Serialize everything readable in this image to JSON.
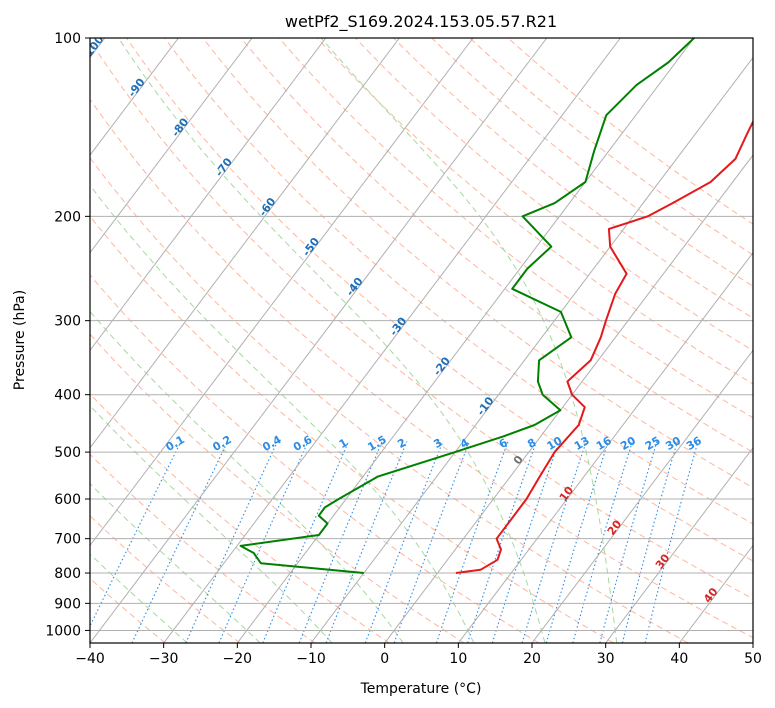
{
  "chart_data": {
    "type": "line",
    "subtype": "skew-t log-p diagram",
    "title": "wetPf2_S169.2024.153.05.57.R21",
    "xlabel": "Temperature (°C)",
    "ylabel": "Pressure (hPa)",
    "xlim": [
      -40,
      50
    ],
    "ylim": [
      1050,
      100
    ],
    "y_scale": "log",
    "grid": true,
    "x_ticks": [
      "−40",
      "−30",
      "−20",
      "−10",
      "0",
      "10",
      "20",
      "30",
      "40",
      "50"
    ],
    "x_tick_values": [
      -40,
      -30,
      -20,
      -10,
      0,
      10,
      20,
      30,
      40,
      50
    ],
    "y_ticks": [
      "100",
      "200",
      "300",
      "400",
      "500",
      "600",
      "700",
      "800",
      "900",
      "1000"
    ],
    "y_tick_values": [
      100,
      200,
      300,
      400,
      500,
      600,
      700,
      800,
      900,
      1000
    ],
    "series": [
      {
        "role": "temperature",
        "color": "#e31a1c",
        "points": [
          [
            2.5,
            800
          ],
          [
            5.5,
            790
          ],
          [
            6.8,
            760
          ],
          [
            6.2,
            730
          ],
          [
            4.5,
            700
          ],
          [
            4.5,
            650
          ],
          [
            4.5,
            600
          ],
          [
            4.0,
            550
          ],
          [
            3.5,
            500
          ],
          [
            4.0,
            450
          ],
          [
            3.0,
            420
          ],
          [
            0.0,
            400
          ],
          [
            -2.0,
            380
          ],
          [
            -1.0,
            350
          ],
          [
            -2.0,
            320
          ],
          [
            -3.0,
            300
          ],
          [
            -4.5,
            270
          ],
          [
            -5.0,
            250
          ],
          [
            -10.0,
            225
          ],
          [
            -12.0,
            210
          ],
          [
            -8.0,
            200
          ],
          [
            -6.0,
            190
          ],
          [
            -3.0,
            175
          ],
          [
            -2.0,
            160
          ],
          [
            -3.0,
            145
          ],
          [
            -4.0,
            130
          ],
          [
            -4.0,
            115
          ],
          [
            -3.0,
            100
          ]
        ]
      },
      {
        "role": "dewpoint",
        "color": "#008000",
        "points": [
          [
            -10.0,
            800
          ],
          [
            -25.0,
            770
          ],
          [
            -27.0,
            740
          ],
          [
            -29.5,
            720
          ],
          [
            -20.0,
            690
          ],
          [
            -20.0,
            660
          ],
          [
            -22.0,
            640
          ],
          [
            -22.0,
            620
          ],
          [
            -21.0,
            600
          ],
          [
            -18.0,
            550
          ],
          [
            -10.0,
            500
          ],
          [
            -5.0,
            470
          ],
          [
            -2.0,
            450
          ],
          [
            0.0,
            425
          ],
          [
            -4.0,
            400
          ],
          [
            -6.0,
            380
          ],
          [
            -8.0,
            350
          ],
          [
            -6.0,
            320
          ],
          [
            -10.0,
            290
          ],
          [
            -19.0,
            265
          ],
          [
            -19.0,
            245
          ],
          [
            -18.0,
            225
          ],
          [
            -25.0,
            200
          ],
          [
            -22.0,
            190
          ],
          [
            -20.0,
            175
          ],
          [
            -22.0,
            155
          ],
          [
            -24.0,
            135
          ],
          [
            -23.0,
            120
          ],
          [
            -21.0,
            110
          ],
          [
            -20.0,
            100
          ]
        ]
      }
    ],
    "background_lines": {
      "isotherms": {
        "color": "#b0b0b0",
        "every_C": 10,
        "from": -130,
        "to": 50
      },
      "dry_adiabats": {
        "color": "#ffb59c",
        "theta_K": [
          230,
          240,
          250,
          260,
          270,
          280,
          290,
          300,
          310,
          320,
          330,
          340,
          350,
          360,
          370,
          380,
          390,
          400,
          410,
          420,
          430,
          440
        ]
      },
      "moist_adiabats": {
        "color": "#a6d9a0",
        "start_C": [
          -30,
          -20,
          -10,
          0,
          10,
          20,
          30
        ]
      },
      "mixing_ratio": {
        "color": "#2b8ce6",
        "g_per_kg": [
          0.1,
          0.2,
          0.4,
          0.6,
          1,
          1.5,
          2,
          3,
          4,
          6,
          8,
          10,
          13,
          16,
          20,
          25,
          30,
          36
        ]
      }
    },
    "isotherm_labels": {
      "color": "#1f6fb8",
      "labels": [
        {
          "text": "-100",
          "value": -100
        },
        {
          "text": "-90",
          "value": -90
        },
        {
          "text": "-80",
          "value": -80
        },
        {
          "text": "-70",
          "value": -70
        },
        {
          "text": "-60",
          "value": -60
        },
        {
          "text": "-50",
          "value": -50
        },
        {
          "text": "-40",
          "value": -40
        },
        {
          "text": "-30",
          "value": -30
        },
        {
          "text": "-20",
          "value": -20
        },
        {
          "text": "-10",
          "value": -10
        }
      ]
    },
    "mixing_ratio_labels": {
      "color": "#2b8ce6",
      "labels": [
        "0.1",
        "0.2",
        "0.4",
        "0.6",
        "1",
        "1.5",
        "2",
        "3",
        "4",
        "6",
        "8",
        "10",
        "13",
        "16",
        "20",
        "25",
        "30",
        "36"
      ]
    },
    "warm_isotherm_labels": {
      "labels": [
        {
          "text": "0",
          "value": 0,
          "color": "#707070"
        },
        {
          "text": "10",
          "value": 10,
          "color": "#d62728"
        },
        {
          "text": "20",
          "value": 20,
          "color": "#d62728"
        },
        {
          "text": "30",
          "value": 30,
          "color": "#d62728"
        },
        {
          "text": "40",
          "value": 40,
          "color": "#d62728"
        }
      ]
    }
  }
}
